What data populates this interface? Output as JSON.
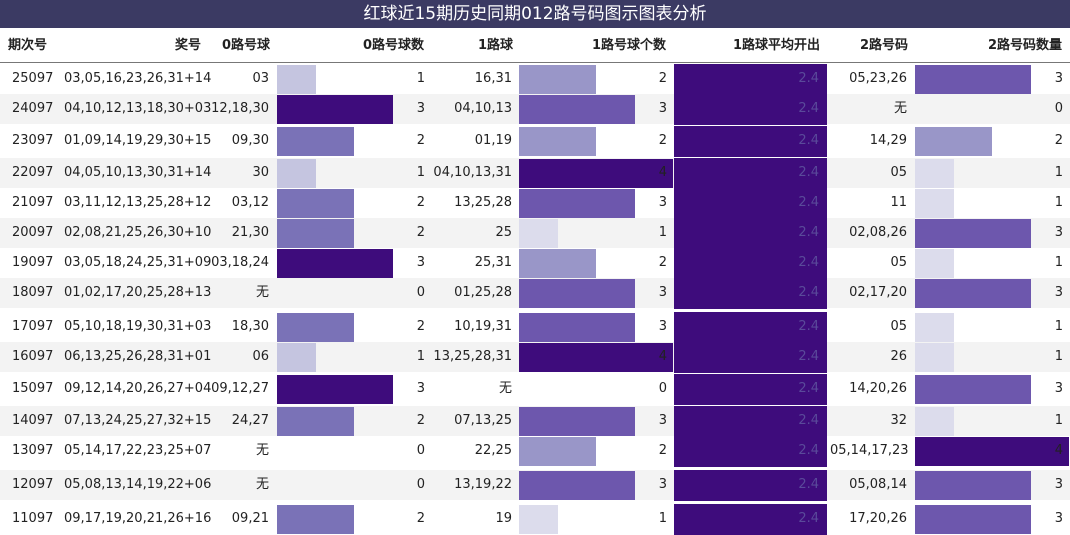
{
  "title": "红球近15期历史同期012路号码图示图表分析",
  "headers": [
    "期次号",
    "奖号",
    "0路号球",
    "0路号球数",
    "1路球",
    "1路号球个数",
    "1路球平均开出",
    "2路号码",
    "2路号码数量"
  ],
  "chart_data": {
    "type": "table",
    "max_count": 4,
    "rows": [
      {
        "period": "25097",
        "draw": "03,05,16,23,26,31+14",
        "r0": "03",
        "c0": 1,
        "r1": "16,31",
        "c1": 2,
        "avg1": "2.4",
        "r2": "05,23,26",
        "c2": 3
      },
      {
        "period": "24097",
        "draw": "04,10,12,13,18,30+03",
        "r0": "12,18,30",
        "c0": 3,
        "r1": "04,10,13",
        "c1": 3,
        "avg1": "2.4",
        "r2": "无",
        "c2": 0
      },
      {
        "period": "23097",
        "draw": "01,09,14,19,29,30+15",
        "r0": "09,30",
        "c0": 2,
        "r1": "01,19",
        "c1": 2,
        "avg1": "2.4",
        "r2": "14,29",
        "c2": 2
      },
      {
        "period": "22097",
        "draw": "04,05,10,13,30,31+14",
        "r0": "30",
        "c0": 1,
        "r1": "04,10,13,31",
        "c1": 4,
        "avg1": "2.4",
        "r2": "05",
        "c2": 1
      },
      {
        "period": "21097",
        "draw": "03,11,12,13,25,28+12",
        "r0": "03,12",
        "c0": 2,
        "r1": "13,25,28",
        "c1": 3,
        "avg1": "2.4",
        "r2": "11",
        "c2": 1
      },
      {
        "period": "20097",
        "draw": "02,08,21,25,26,30+10",
        "r0": "21,30",
        "c0": 2,
        "r1": "25",
        "c1": 1,
        "avg1": "2.4",
        "r2": "02,08,26",
        "c2": 3
      },
      {
        "period": "19097",
        "draw": "03,05,18,24,25,31+09",
        "r0": "03,18,24",
        "c0": 3,
        "r1": "25,31",
        "c1": 2,
        "avg1": "2.4",
        "r2": "05",
        "c2": 1
      },
      {
        "period": "18097",
        "draw": "01,02,17,20,25,28+13",
        "r0": "无",
        "c0": 0,
        "r1": "01,25,28",
        "c1": 3,
        "avg1": "2.4",
        "r2": "02,17,20",
        "c2": 3
      },
      {
        "period": "17097",
        "draw": "05,10,18,19,30,31+03",
        "r0": "18,30",
        "c0": 2,
        "r1": "10,19,31",
        "c1": 3,
        "avg1": "2.4",
        "r2": "05",
        "c2": 1
      },
      {
        "period": "16097",
        "draw": "06,13,25,26,28,31+01",
        "r0": "06",
        "c0": 1,
        "r1": "13,25,28,31",
        "c1": 4,
        "avg1": "2.4",
        "r2": "26",
        "c2": 1
      },
      {
        "period": "15097",
        "draw": "09,12,14,20,26,27+04",
        "r0": "09,12,27",
        "c0": 3,
        "r1": "无",
        "c1": 0,
        "avg1": "2.4",
        "r2": "14,20,26",
        "c2": 3
      },
      {
        "period": "14097",
        "draw": "07,13,24,25,27,32+15",
        "r0": "24,27",
        "c0": 2,
        "r1": "07,13,25",
        "c1": 3,
        "avg1": "2.4",
        "r2": "32",
        "c2": 1
      },
      {
        "period": "13097",
        "draw": "05,14,17,22,23,25+07",
        "r0": "无",
        "c0": 0,
        "r1": "22,25",
        "c1": 2,
        "avg1": "2.4",
        "r2": "05,14,17,23",
        "c2": 4
      },
      {
        "period": "12097",
        "draw": "05,08,13,14,19,22+06",
        "r0": "无",
        "c0": 0,
        "r1": "13,19,22",
        "c1": 3,
        "avg1": "2.4",
        "r2": "05,08,14",
        "c2": 3
      },
      {
        "period": "11097",
        "draw": "09,17,19,20,21,26+16",
        "r0": "09,21",
        "c0": 2,
        "r1": "19",
        "c1": 1,
        "avg1": "2.4",
        "r2": "17,20,26",
        "c2": 3
      }
    ]
  },
  "colors": {
    "title_bg": "#3b3a63",
    "count_1": "#c5c5e0",
    "count_2": "#9996c8",
    "count_3": "#6d57ad",
    "count_4": "#3e0c7c",
    "avg_bar": "#3e0c7c",
    "light_1": "#dcdcec",
    "c0_2": "#7a72b7",
    "c0_3": "#3e0c7c"
  }
}
